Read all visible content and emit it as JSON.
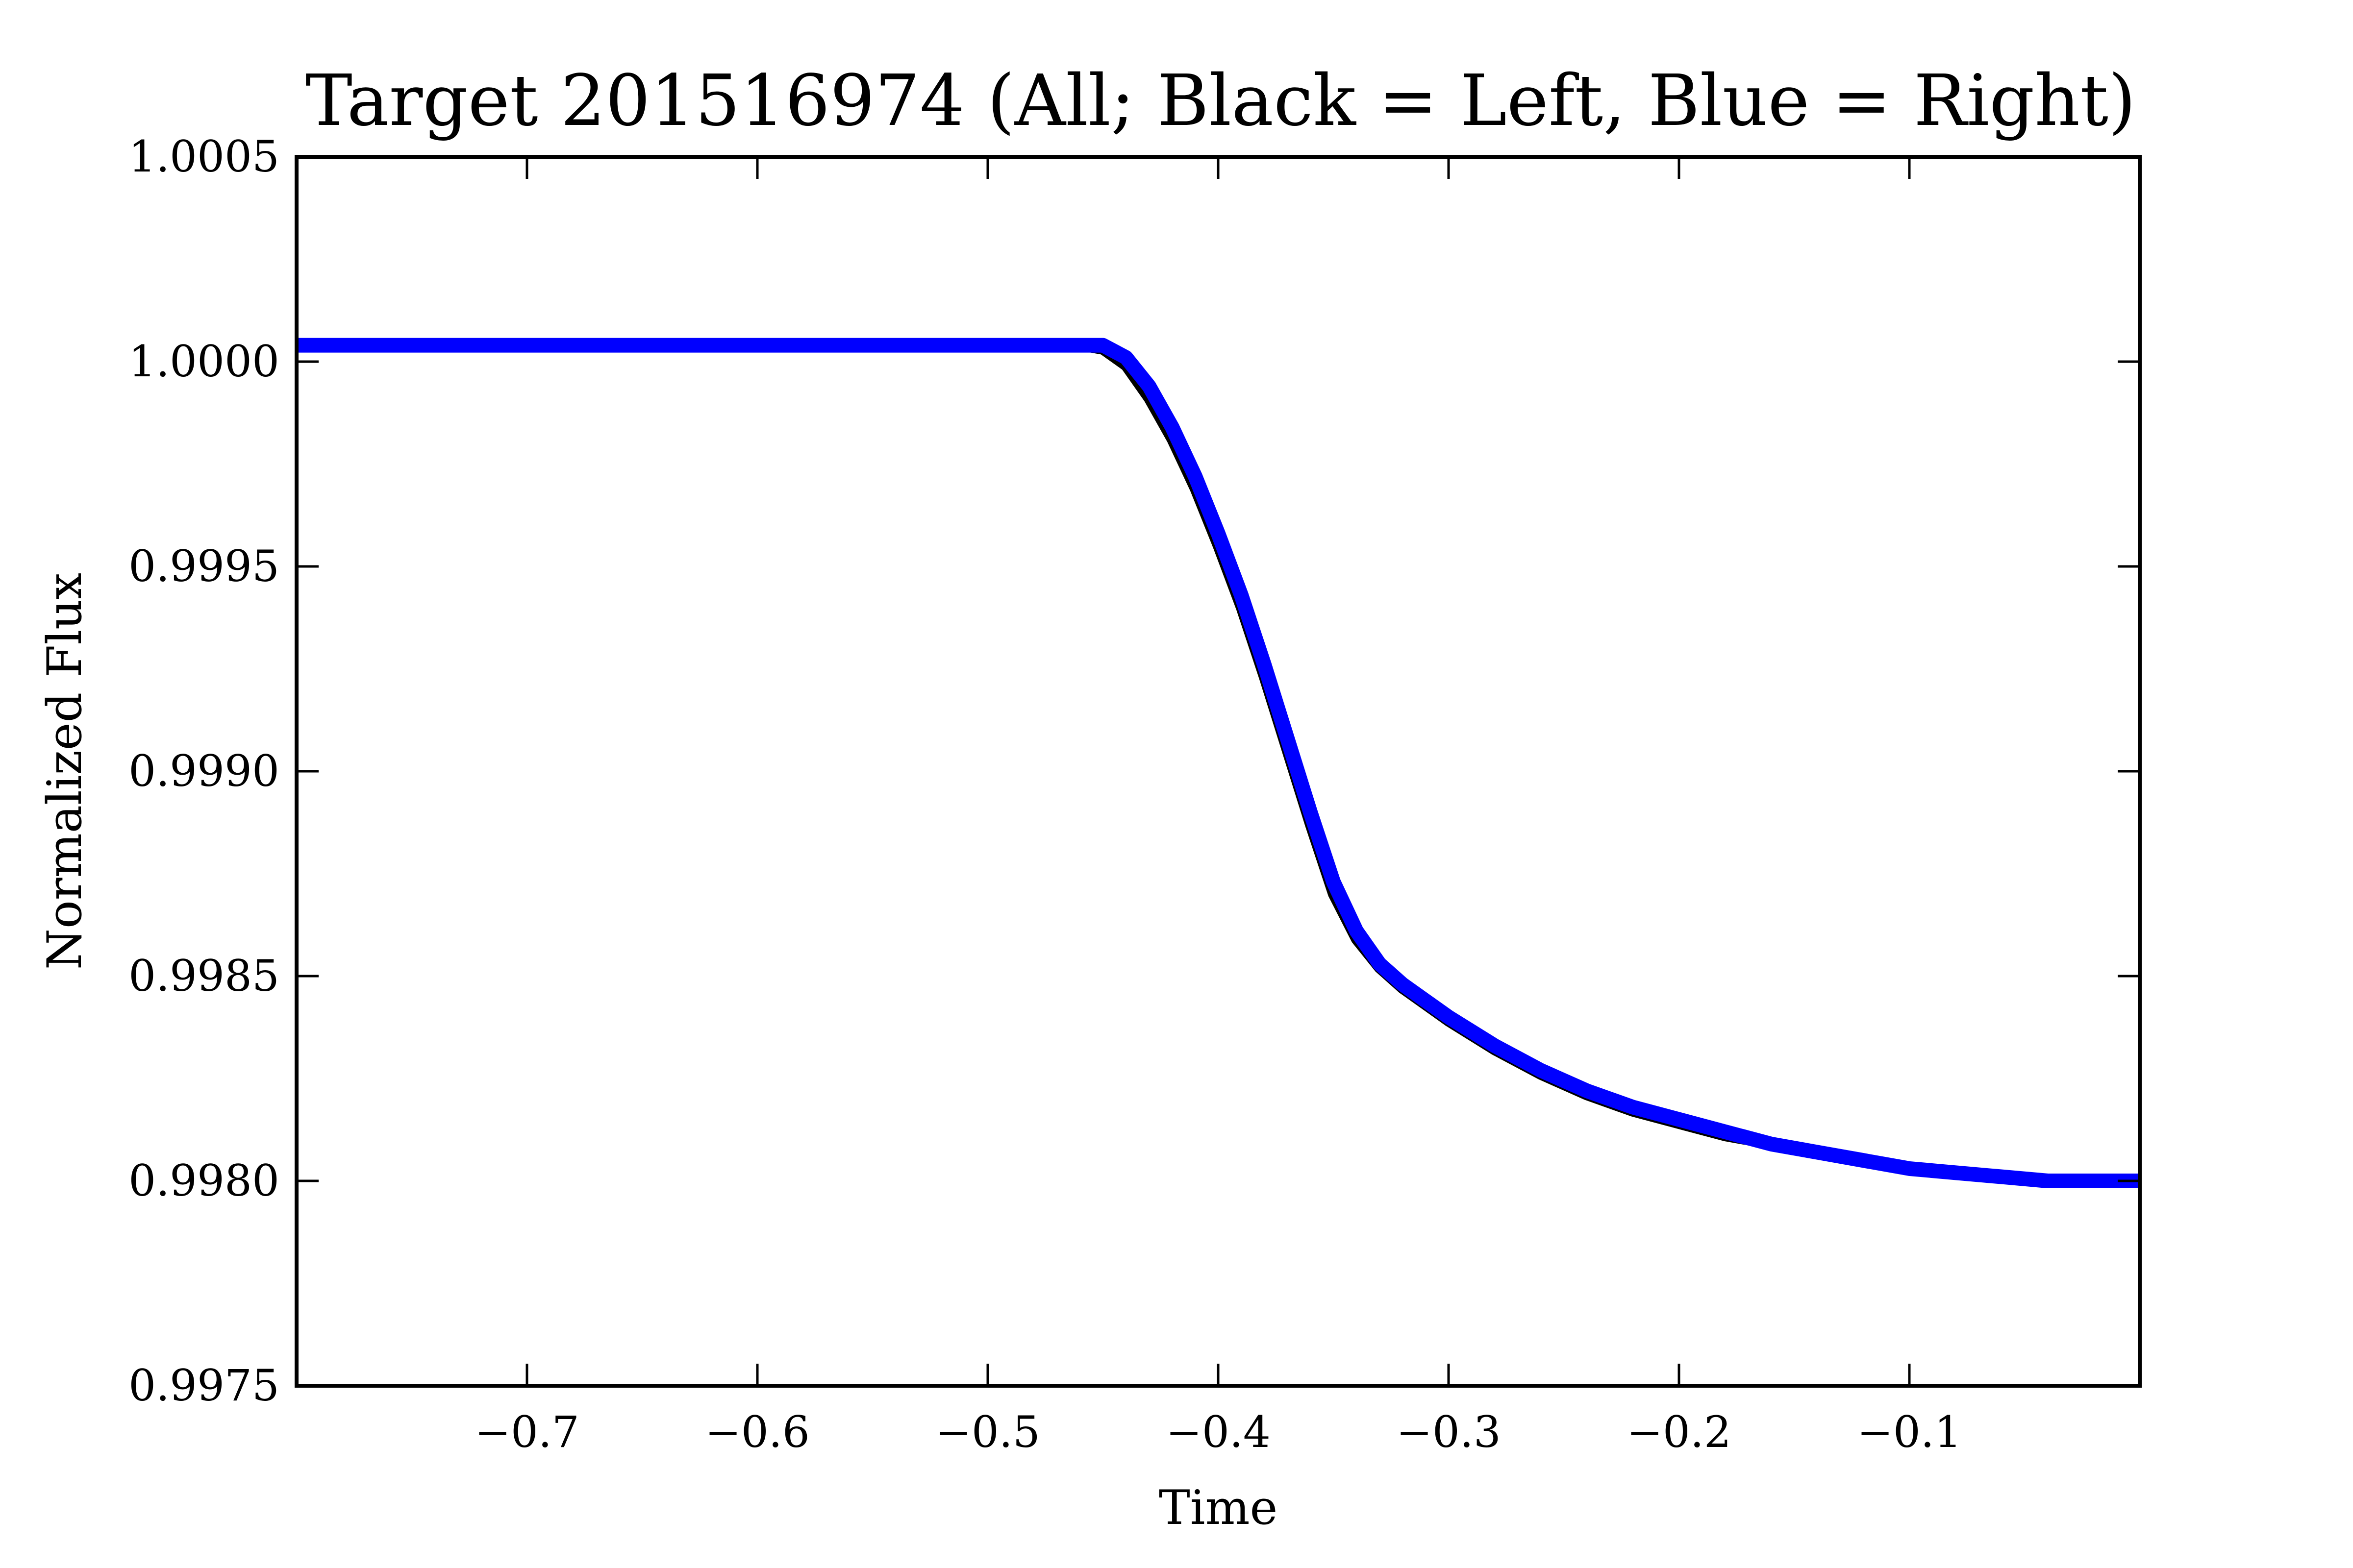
{
  "chart_data": {
    "type": "line",
    "title": "Target 201516974 (All; Black = Left, Blue = Right)",
    "xlabel": "Time",
    "ylabel": "Normalized Flux",
    "xlim": [
      -0.8,
      0.0
    ],
    "ylim": [
      0.9975,
      1.0005
    ],
    "x_ticks": [
      -0.7,
      -0.6,
      -0.5,
      -0.4,
      -0.3,
      -0.2,
      -0.1
    ],
    "x_tick_labels": [
      "−0.7",
      "−0.6",
      "−0.5",
      "−0.4",
      "−0.3",
      "−0.2",
      "−0.1"
    ],
    "y_ticks": [
      0.9975,
      0.998,
      0.9985,
      0.999,
      0.9995,
      1.0,
      1.0005
    ],
    "y_tick_labels": [
      "0.9975",
      "0.9980",
      "0.9985",
      "0.9990",
      "0.9995",
      "1.0000",
      "1.0005"
    ],
    "grid": false,
    "legend": "none",
    "series": [
      {
        "color": "#000000",
        "x": [
          -0.8,
          -0.75,
          -0.7,
          -0.65,
          -0.6,
          -0.55,
          -0.5,
          -0.46,
          -0.45,
          -0.44,
          -0.43,
          -0.42,
          -0.41,
          -0.4,
          -0.39,
          -0.38,
          -0.37,
          -0.36,
          -0.35,
          -0.34,
          -0.33,
          -0.32,
          -0.31,
          -0.3,
          -0.28,
          -0.26,
          -0.24,
          -0.22,
          -0.2,
          -0.18,
          -0.16,
          -0.14,
          -0.12,
          -0.1,
          -0.08,
          -0.06,
          -0.04,
          -0.02,
          0.0
        ],
        "y": [
          1.00004,
          1.00004,
          1.00004,
          1.00004,
          1.00004,
          1.00004,
          1.00004,
          1.00004,
          1.00003,
          0.99999,
          0.99991,
          0.99981,
          0.99969,
          0.99955,
          0.9994,
          0.99923,
          0.99905,
          0.99887,
          0.9987,
          0.99859,
          0.99852,
          0.99847,
          0.99843,
          0.99839,
          0.99832,
          0.99826,
          0.99821,
          0.99817,
          0.99814,
          0.99811,
          0.99809,
          0.99807,
          0.99805,
          0.99803,
          0.99802,
          0.99801,
          0.998,
          0.998,
          0.998
        ]
      },
      {
        "color": "#0000ff",
        "x": [
          -0.8,
          -0.75,
          -0.7,
          -0.65,
          -0.6,
          -0.55,
          -0.5,
          -0.46,
          -0.45,
          -0.44,
          -0.43,
          -0.42,
          -0.41,
          -0.4,
          -0.39,
          -0.38,
          -0.37,
          -0.36,
          -0.35,
          -0.34,
          -0.33,
          -0.32,
          -0.31,
          -0.3,
          -0.28,
          -0.26,
          -0.24,
          -0.22,
          -0.2,
          -0.18,
          -0.16,
          -0.14,
          -0.12,
          -0.1,
          -0.08,
          -0.06,
          -0.04,
          -0.02,
          0.0
        ],
        "y": [
          1.00004,
          1.00004,
          1.00004,
          1.00004,
          1.00004,
          1.00004,
          1.00004,
          1.00004,
          1.00004,
          1.00001,
          0.99994,
          0.99984,
          0.99972,
          0.99958,
          0.99943,
          0.99926,
          0.99908,
          0.9989,
          0.99873,
          0.99861,
          0.99853,
          0.99848,
          0.99844,
          0.9984,
          0.99833,
          0.99827,
          0.99822,
          0.99818,
          0.99815,
          0.99812,
          0.99809,
          0.99807,
          0.99805,
          0.99803,
          0.99802,
          0.99801,
          0.998,
          0.998,
          0.998
        ]
      }
    ]
  }
}
